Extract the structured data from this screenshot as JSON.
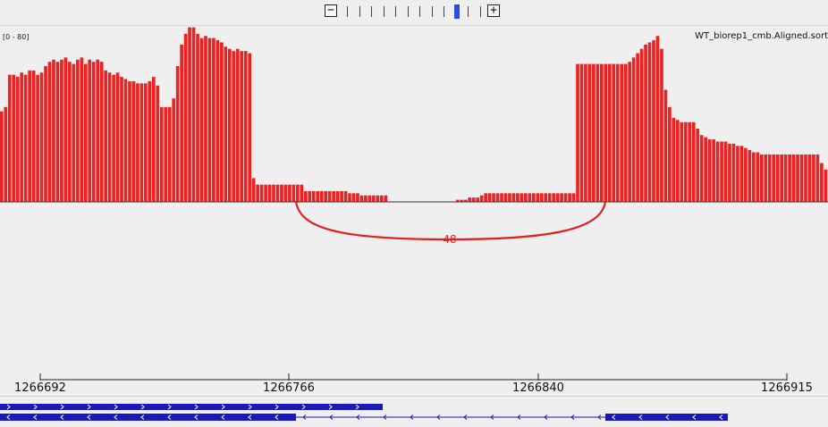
{
  "zoom": {
    "minus_label": "−",
    "plus_label": "+",
    "levels": 12,
    "active_level": 9
  },
  "track": {
    "name": "WT_biorep1_cmb.Aligned.sort",
    "data_range": "[0 - 80]",
    "bar_color": "#e82323",
    "range_max": 80,
    "bars": [
      42,
      44,
      59,
      59,
      58,
      60,
      59,
      61,
      61,
      59,
      60,
      63,
      65,
      66,
      65,
      66,
      67,
      65,
      64,
      66,
      67,
      64,
      66,
      65,
      66,
      65,
      61,
      60,
      59,
      60,
      58,
      57,
      56,
      56,
      55,
      55,
      55,
      56,
      58,
      54,
      44,
      44,
      44,
      48,
      63,
      73,
      78,
      81,
      81,
      78,
      76,
      77,
      76,
      76,
      75,
      74,
      72,
      71,
      70,
      71,
      70,
      70,
      69,
      11,
      8,
      8,
      8,
      8,
      8,
      8,
      8,
      8,
      8,
      8,
      8,
      8,
      5,
      5,
      5,
      5,
      5,
      5,
      5,
      5,
      5,
      5,
      5,
      4,
      4,
      4,
      3,
      3,
      3,
      3,
      3,
      3,
      3,
      0,
      0,
      0,
      0,
      0,
      0,
      0,
      0,
      0,
      0,
      0,
      0,
      0,
      0,
      0,
      0,
      0,
      1,
      1,
      1,
      2,
      2,
      2,
      3,
      4,
      4,
      4,
      4,
      4,
      4,
      4,
      4,
      4,
      4,
      4,
      4,
      4,
      4,
      4,
      4,
      4,
      4,
      4,
      4,
      4,
      4,
      4,
      64,
      64,
      64,
      64,
      64,
      64,
      64,
      64,
      64,
      64,
      64,
      64,
      64,
      65,
      67,
      69,
      71,
      73,
      74,
      75,
      77,
      71,
      52,
      44,
      39,
      38,
      37,
      37,
      37,
      37,
      34,
      31,
      30,
      29,
      29,
      28,
      28,
      28,
      27,
      27,
      26,
      26,
      25,
      24,
      23,
      23,
      22,
      22,
      22,
      22,
      22,
      22,
      22,
      22,
      22,
      22,
      22,
      22,
      22,
      22,
      22,
      18,
      15
    ]
  },
  "junction": {
    "count_label": "48",
    "color": "#e02020"
  },
  "ruler": {
    "ticks": [
      "1266692",
      "1266766",
      "1266840",
      "1266915"
    ]
  },
  "features": {
    "color": "#1a1ab8"
  }
}
